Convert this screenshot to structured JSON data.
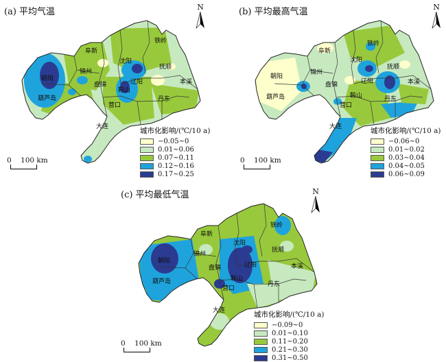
{
  "colors": {
    "c1": "#ffffcc",
    "c2": "#c7e9c0",
    "c3": "#98c93c",
    "c4": "#1fa3dc",
    "c5": "#2b3b91",
    "border": "#333333",
    "coast": "#222222"
  },
  "north_label": "N",
  "scale": {
    "zero": "0",
    "dist": "100 km"
  },
  "legend_title": "城市化影响/(℃/10 a)",
  "panels": [
    {
      "title": "(a) 平均气温",
      "legend": [
        "−0.05~0",
        "0.01~0.06",
        "0.07~0.11",
        "0.12~0.16",
        "0.17~0.25"
      ]
    },
    {
      "title": "(b) 平均最高气温",
      "legend": [
        "−0.06~0",
        "0.01~0.02",
        "0.03~0.04",
        "0.04~0.05",
        "0.06~0.09"
      ]
    },
    {
      "title": "(c) 平均最低气温",
      "legend": [
        "−0.09~0",
        "0.01~0.10",
        "0.11~0.20",
        "0.21~0.30",
        "0.31~0.50"
      ]
    }
  ],
  "cities": {
    "fuxin": "阜新",
    "tieling": "铁岭",
    "shenyang": "沈阳",
    "chaoyang": "朝阳",
    "jinzhou": "锦州",
    "panjin": "盘锦",
    "anshan": "鞍山",
    "liaoyang": "辽阳",
    "fushun": "抚顺",
    "benxi": "本溪",
    "huludao": "葫芦岛",
    "yingkou": "营口",
    "dandong": "丹东",
    "dalian": "大连"
  }
}
